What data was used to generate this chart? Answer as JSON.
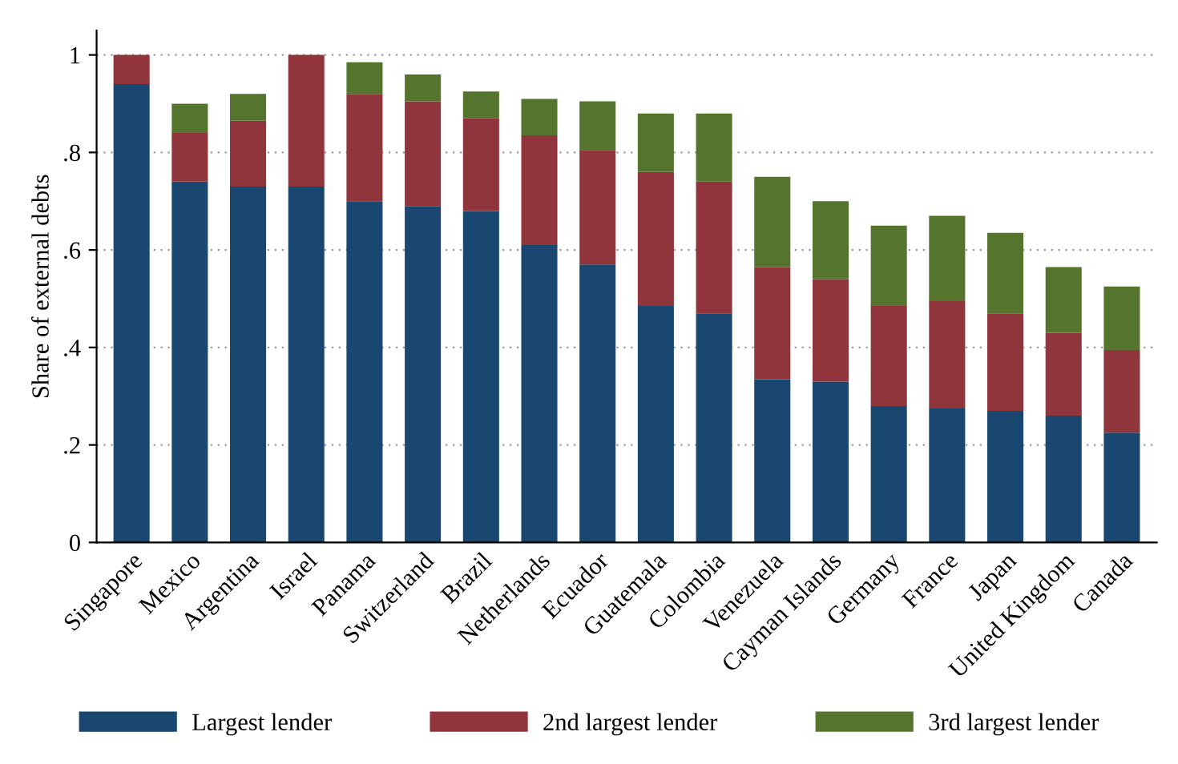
{
  "chart_data": {
    "type": "bar",
    "stacked": true,
    "ylabel": "Share of external debts",
    "categories": [
      "Singapore",
      "Mexico",
      "Argentina",
      "Israel",
      "Panama",
      "Switzerland",
      "Brazil",
      "Netherlands",
      "Ecuador",
      "Guatemala",
      "Colombia",
      "Venezuela",
      "Cayman Islands",
      "Germany",
      "France",
      "Japan",
      "United Kingdom",
      "Canada"
    ],
    "series": [
      {
        "name": "Largest lender",
        "color": "#1a476f",
        "values": [
          0.94,
          0.74,
          0.73,
          0.73,
          0.7,
          0.69,
          0.68,
          0.61,
          0.57,
          0.485,
          0.47,
          0.335,
          0.33,
          0.28,
          0.275,
          0.27,
          0.26,
          0.225
        ]
      },
      {
        "name": "2nd largest lender",
        "color": "#90353b",
        "values": [
          0.06,
          0.1,
          0.135,
          0.27,
          0.22,
          0.215,
          0.19,
          0.225,
          0.235,
          0.275,
          0.27,
          0.23,
          0.21,
          0.205,
          0.22,
          0.2,
          0.17,
          0.17
        ]
      },
      {
        "name": "3rd largest lender",
        "color": "#55752f",
        "values": [
          0,
          0.06,
          0.055,
          0,
          0.065,
          0.055,
          0.055,
          0.075,
          0.1,
          0.12,
          0.14,
          0.185,
          0.16,
          0.165,
          0.175,
          0.165,
          0.135,
          0.13
        ]
      }
    ],
    "ylim": [
      0,
      1.05
    ],
    "yticks": [
      0,
      {
        "value": 0.2,
        "label": ".2"
      },
      {
        "value": 0.4,
        "label": ".4"
      },
      {
        "value": 0.6,
        "label": ".6"
      },
      {
        "value": 0.8,
        "label": ".8"
      },
      1
    ],
    "grid": "y",
    "legend": "bottom"
  }
}
